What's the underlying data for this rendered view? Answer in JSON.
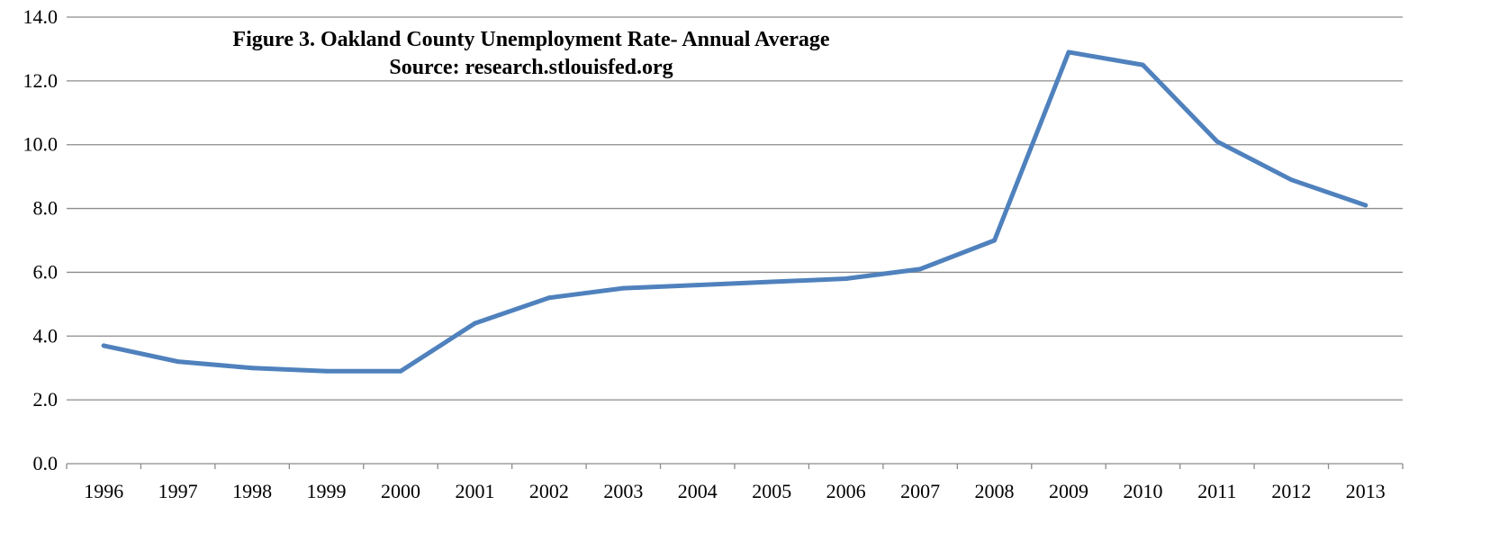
{
  "chart_data": {
    "type": "line",
    "title": "Figure 3. Oakland County Unemployment Rate- Annual Average",
    "subtitle": "Source: research.stlouisfed.org",
    "xlabel": "",
    "ylabel": "",
    "categories": [
      "1996",
      "1997",
      "1998",
      "1999",
      "2000",
      "2001",
      "2002",
      "2003",
      "2004",
      "2005",
      "2006",
      "2007",
      "2008",
      "2009",
      "2010",
      "2011",
      "2012",
      "2013"
    ],
    "series": [
      {
        "values": [
          3.7,
          3.2,
          3.0,
          2.9,
          2.9,
          4.4,
          5.2,
          5.5,
          5.6,
          5.7,
          5.8,
          6.1,
          7.0,
          12.9,
          12.5,
          10.1,
          8.9,
          8.1
        ],
        "color": "#4f81bd"
      }
    ],
    "ylim": [
      0,
      14
    ],
    "yticks": [
      "0.0",
      "2.0",
      "4.0",
      "6.0",
      "8.0",
      "10.0",
      "12.0",
      "14.0"
    ],
    "grid": true,
    "legend": "none"
  }
}
